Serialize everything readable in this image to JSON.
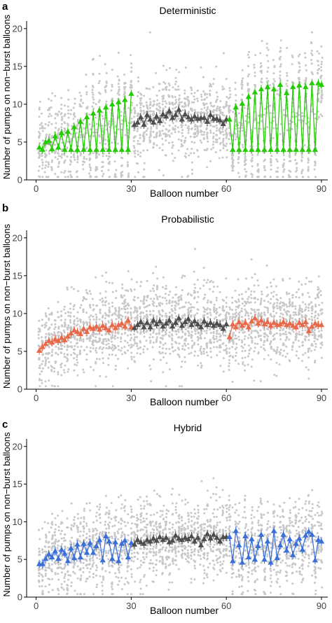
{
  "figure": {
    "ylabel": "Number of pumps on non−burst balloons",
    "xlabel": "Balloon number",
    "x_ticks": [
      "0",
      "30",
      "60",
      "90"
    ],
    "y_ticks": [
      "0",
      "5",
      "10",
      "15",
      "20"
    ],
    "colors": {
      "scatter": "#c8c8c8",
      "middle_block": "#4d4d4d",
      "deterministic": "#22cc00",
      "probabilistic": "#e8694a",
      "hybrid": "#3a6fd8"
    }
  },
  "chart_data": [
    {
      "type": "line",
      "panel": "a",
      "title": "Deterministic",
      "xlabel": "Balloon number",
      "ylabel": "Number of pumps on non−burst balloons",
      "xlim": [
        -3,
        92
      ],
      "ylim": [
        0,
        21
      ],
      "x_ticks": [
        0,
        30,
        60,
        90
      ],
      "y_ticks": [
        0,
        5,
        10,
        15,
        20
      ],
      "marker": "triangle",
      "background_points": "grey jittered individual observations",
      "series": [
        {
          "block": "1-30",
          "color": "deterministic",
          "x": [
            1,
            2,
            3,
            4,
            5,
            6,
            7,
            8,
            9,
            10,
            11,
            12,
            13,
            14,
            15,
            16,
            17,
            18,
            19,
            20,
            21,
            22,
            23,
            24,
            25,
            26,
            27,
            28,
            29,
            30
          ],
          "y": [
            4.3,
            4.0,
            5.0,
            5.2,
            4.1,
            5.8,
            4.3,
            6.2,
            4.0,
            6.4,
            4.0,
            7.0,
            4.0,
            7.7,
            4.0,
            8.3,
            4.0,
            8.8,
            4.0,
            9.2,
            4.0,
            9.6,
            4.0,
            10.0,
            4.0,
            10.3,
            4.0,
            10.6,
            4.0,
            11.4
          ]
        },
        {
          "block": "31-60",
          "color": "middle_block",
          "x": [
            31,
            32,
            33,
            34,
            35,
            36,
            37,
            38,
            39,
            40,
            41,
            42,
            43,
            44,
            45,
            46,
            47,
            48,
            49,
            50,
            51,
            52,
            53,
            54,
            55,
            56,
            57,
            58,
            59,
            60
          ],
          "y": [
            7.3,
            7.6,
            8.3,
            7.3,
            8.6,
            8.0,
            7.6,
            8.4,
            7.8,
            8.7,
            8.4,
            9.1,
            8.2,
            8.6,
            9.3,
            8.0,
            8.7,
            8.3,
            8.0,
            8.4,
            8.1,
            8.2,
            8.2,
            7.7,
            8.6,
            8.1,
            8.1,
            7.9,
            7.4,
            8.0
          ]
        },
        {
          "block": "61-90",
          "color": "deterministic",
          "x": [
            61,
            62,
            63,
            64,
            65,
            66,
            67,
            68,
            69,
            70,
            71,
            72,
            73,
            74,
            75,
            76,
            77,
            78,
            79,
            80,
            81,
            82,
            83,
            84,
            85,
            86,
            87,
            88,
            89,
            90
          ],
          "y": [
            8.0,
            4.0,
            9.6,
            4.0,
            10.1,
            4.0,
            11.0,
            4.0,
            11.6,
            4.0,
            12.0,
            4.0,
            12.3,
            4.0,
            12.0,
            4.0,
            12.6,
            4.0,
            11.5,
            4.0,
            12.3,
            4.0,
            12.5,
            4.0,
            12.3,
            4.0,
            12.8,
            4.0,
            12.8,
            12.6
          ]
        }
      ]
    },
    {
      "type": "line",
      "panel": "b",
      "title": "Probabilistic",
      "xlabel": "Balloon number",
      "ylabel": "Number of pumps on non−burst balloons",
      "xlim": [
        -3,
        92
      ],
      "ylim": [
        0,
        21
      ],
      "x_ticks": [
        0,
        30,
        60,
        90
      ],
      "y_ticks": [
        0,
        5,
        10,
        15,
        20
      ],
      "marker": "triangle",
      "background_points": "grey jittered individual observations",
      "series": [
        {
          "block": "1-30",
          "color": "probabilistic",
          "x": [
            1,
            2,
            3,
            4,
            5,
            6,
            7,
            8,
            9,
            10,
            11,
            12,
            13,
            14,
            15,
            16,
            17,
            18,
            19,
            20,
            21,
            22,
            23,
            24,
            25,
            26,
            27,
            28,
            29,
            30
          ],
          "y": [
            5.1,
            5.6,
            6.0,
            6.4,
            6.2,
            6.6,
            6.4,
            6.8,
            6.5,
            7.0,
            7.4,
            7.8,
            7.6,
            7.3,
            8.0,
            7.6,
            8.2,
            8.0,
            8.3,
            7.9,
            8.4,
            8.1,
            7.8,
            8.5,
            8.1,
            8.5,
            8.7,
            8.3,
            9.1,
            8.2
          ]
        },
        {
          "block": "31-60",
          "color": "middle_block",
          "x": [
            31,
            32,
            33,
            34,
            35,
            36,
            37,
            38,
            39,
            40,
            41,
            42,
            43,
            44,
            45,
            46,
            47,
            48,
            49,
            50,
            51,
            52,
            53,
            54,
            55,
            56,
            57,
            58,
            59,
            60
          ],
          "y": [
            8.1,
            8.5,
            8.9,
            8.2,
            8.8,
            8.2,
            9.1,
            8.6,
            9.0,
            8.3,
            8.7,
            9.1,
            8.3,
            8.8,
            9.4,
            8.4,
            8.9,
            9.3,
            8.5,
            9.0,
            8.6,
            8.2,
            9.0,
            8.5,
            8.8,
            8.4,
            8.7,
            8.5,
            8.0,
            8.6
          ]
        },
        {
          "block": "61-90",
          "color": "probabilistic",
          "x": [
            61,
            62,
            63,
            64,
            65,
            66,
            67,
            68,
            69,
            70,
            71,
            72,
            73,
            74,
            75,
            76,
            77,
            78,
            79,
            80,
            81,
            82,
            83,
            84,
            85,
            86,
            87,
            88,
            89,
            90
          ],
          "y": [
            6.9,
            8.6,
            8.2,
            8.9,
            8.4,
            8.8,
            8.2,
            9.0,
            9.4,
            8.7,
            9.1,
            8.6,
            8.9,
            8.4,
            8.8,
            8.5,
            8.6,
            8.9,
            8.5,
            8.7,
            8.4,
            8.2,
            8.8,
            8.5,
            8.9,
            7.7,
            8.3,
            8.7,
            8.5,
            8.5
          ]
        }
      ]
    },
    {
      "type": "line",
      "panel": "c",
      "title": "Hybrid",
      "xlabel": "Balloon number",
      "ylabel": "Number of pumps on non−burst balloons",
      "xlim": [
        -3,
        92
      ],
      "ylim": [
        0,
        21
      ],
      "x_ticks": [
        0,
        30,
        60,
        90
      ],
      "y_ticks": [
        0,
        5,
        10,
        15,
        20
      ],
      "marker": "triangle",
      "background_points": "grey jittered individual observations",
      "series": [
        {
          "block": "1-30",
          "color": "hybrid",
          "x": [
            1,
            2,
            3,
            4,
            5,
            6,
            7,
            8,
            9,
            10,
            11,
            12,
            13,
            14,
            15,
            16,
            17,
            18,
            19,
            20,
            21,
            22,
            23,
            24,
            25,
            26,
            27,
            28,
            29,
            30
          ],
          "y": [
            4.4,
            4.4,
            5.1,
            5.7,
            5.3,
            6.1,
            5.1,
            6.3,
            5.8,
            4.8,
            6.5,
            5.2,
            7.0,
            5.3,
            7.1,
            5.9,
            7.2,
            5.9,
            6.8,
            7.6,
            4.9,
            8.1,
            7.4,
            5.1,
            7.3,
            4.8,
            7.1,
            7.5,
            5.3,
            7.2
          ]
        },
        {
          "block": "31-60",
          "color": "middle_block",
          "x": [
            31,
            32,
            33,
            34,
            35,
            36,
            37,
            38,
            39,
            40,
            41,
            42,
            43,
            44,
            45,
            46,
            47,
            48,
            49,
            50,
            51,
            52,
            53,
            54,
            55,
            56,
            57,
            58,
            59,
            60
          ],
          "y": [
            7.0,
            7.6,
            7.3,
            7.1,
            7.6,
            7.4,
            7.8,
            7.5,
            8.0,
            7.6,
            7.9,
            7.3,
            7.5,
            8.2,
            7.8,
            7.6,
            7.9,
            7.7,
            8.1,
            7.4,
            7.9,
            6.9,
            7.7,
            8.4,
            7.8,
            8.3,
            7.9,
            7.4,
            8.0,
            8.0
          ]
        },
        {
          "block": "61-90",
          "color": "hybrid",
          "x": [
            61,
            62,
            63,
            64,
            65,
            66,
            67,
            68,
            69,
            70,
            71,
            72,
            73,
            74,
            75,
            76,
            77,
            78,
            79,
            80,
            81,
            82,
            83,
            84,
            85,
            86,
            87,
            88,
            89,
            90
          ],
          "y": [
            8.0,
            4.8,
            8.8,
            6.9,
            4.6,
            8.1,
            5.3,
            7.7,
            5.0,
            6.8,
            8.3,
            5.0,
            7.4,
            4.6,
            8.8,
            5.2,
            6.9,
            8.3,
            6.2,
            7.7,
            5.6,
            7.1,
            7.8,
            6.3,
            8.2,
            8.7,
            8.3,
            4.9,
            7.6,
            7.4
          ]
        }
      ]
    }
  ]
}
